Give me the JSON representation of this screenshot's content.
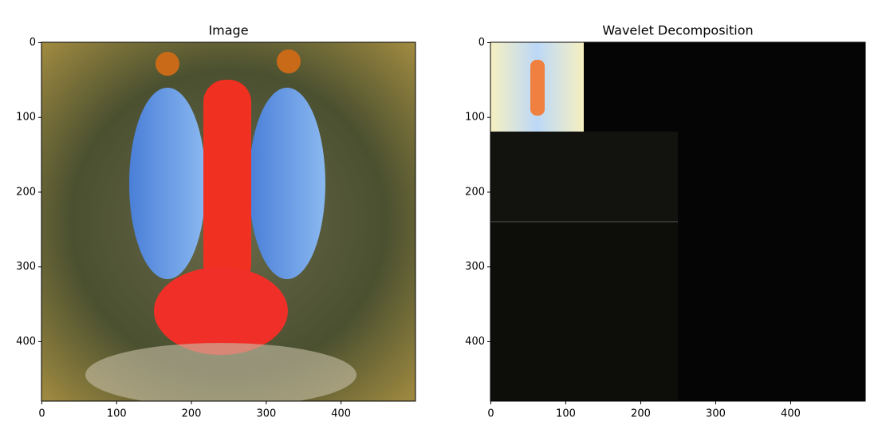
{
  "chart_data": [
    {
      "type": "image",
      "title": "Image",
      "xlim": [
        -0.5,
        499.5
      ],
      "ylim": [
        479.5,
        -0.5
      ],
      "xticks": [
        0,
        100,
        200,
        300,
        400
      ],
      "yticks": [
        0,
        100,
        200,
        300,
        400
      ]
    },
    {
      "type": "image",
      "title": "Wavelet Decomposition",
      "xlim": [
        -0.5,
        499.5
      ],
      "ylim": [
        479.5,
        -0.5
      ],
      "xticks": [
        0,
        100,
        200,
        300,
        400
      ],
      "yticks": [
        0,
        100,
        200,
        300,
        400
      ]
    }
  ]
}
